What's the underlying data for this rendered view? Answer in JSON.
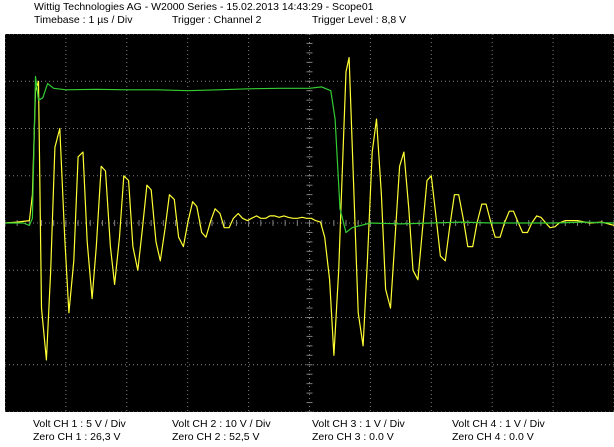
{
  "header": {
    "line1": "Wittig Technologies AG - W2000 Series  -  15.02.2013 14:43:29 - Scope01",
    "timebase": "Timebase : 1 µs / Div",
    "trigger": "Trigger : Channel 2",
    "trigger_level": "Trigger Level : 8,8 V"
  },
  "footer": {
    "volt": [
      "Volt CH 1 : 5 V / Div",
      "Volt CH 2 : 10 V / Div",
      "Volt CH 3 : 1 V / Div",
      "Volt CH 4 : 1 V / Div"
    ],
    "zero": [
      "Zero CH 1 : 26,3 V",
      "Zero CH 2 : 52,5 V",
      "Zero CH 3 : 0.0 V",
      "Zero CH 4 : 0.0 V"
    ]
  },
  "colors": {
    "background": "#000000",
    "grid": "#808080",
    "ch1": "#ffff33",
    "ch2": "#33cc33"
  },
  "chart_data": {
    "type": "line",
    "title": "",
    "xlabel": "",
    "ylabel": "",
    "x_unit": "µs",
    "y_unit": "div",
    "xlim": [
      0,
      10
    ],
    "ylim": [
      -4,
      4
    ],
    "grid": true,
    "series": [
      {
        "name": "CH 1",
        "color": "#ffff33",
        "x": [
          0,
          0.2,
          0.4,
          0.45,
          0.5,
          0.55,
          0.6,
          0.68,
          0.75,
          0.82,
          0.9,
          0.98,
          1.05,
          1.13,
          1.2,
          1.28,
          1.35,
          1.43,
          1.5,
          1.58,
          1.65,
          1.73,
          1.8,
          1.88,
          1.95,
          2.03,
          2.1,
          2.18,
          2.25,
          2.33,
          2.4,
          2.48,
          2.55,
          2.63,
          2.7,
          2.78,
          2.85,
          2.93,
          3.0,
          3.08,
          3.15,
          3.23,
          3.3,
          3.38,
          3.45,
          3.53,
          3.6,
          3.68,
          3.75,
          3.83,
          3.9,
          3.98,
          4.05,
          4.13,
          4.2,
          4.28,
          4.35,
          4.43,
          4.5,
          4.58,
          4.65,
          4.73,
          4.8,
          4.88,
          4.95,
          5.03,
          5.1,
          5.18,
          5.25,
          5.33,
          5.4,
          5.48,
          5.55,
          5.6,
          5.65,
          5.72,
          5.8,
          5.88,
          5.95,
          6.03,
          6.1,
          6.18,
          6.25,
          6.33,
          6.4,
          6.48,
          6.55,
          6.63,
          6.7,
          6.78,
          6.85,
          6.93,
          7.0,
          7.08,
          7.15,
          7.23,
          7.3,
          7.38,
          7.45,
          7.53,
          7.6,
          7.68,
          7.75,
          7.83,
          7.9,
          7.98,
          8.05,
          8.13,
          8.2,
          8.28,
          8.35,
          8.43,
          8.5,
          8.58,
          8.65,
          8.73,
          8.8,
          8.88,
          8.95,
          9.03,
          9.1,
          9.2,
          9.4,
          9.6,
          9.8,
          10
        ],
        "values": [
          0,
          0.02,
          0.05,
          0.6,
          2.8,
          3.0,
          -1.8,
          -2.9,
          -1.0,
          1.6,
          2.0,
          -0.3,
          -1.9,
          -0.8,
          1.4,
          1.5,
          -0.4,
          -1.6,
          -0.5,
          1.2,
          1.1,
          -0.5,
          -1.3,
          -0.3,
          1.0,
          0.9,
          -0.5,
          -1.0,
          -0.2,
          0.8,
          0.7,
          -0.4,
          -0.8,
          -0.1,
          0.6,
          0.5,
          -0.3,
          -0.5,
          0.0,
          0.45,
          0.35,
          -0.2,
          -0.3,
          0.05,
          0.3,
          0.2,
          -0.1,
          -0.1,
          0.1,
          0.2,
          0.1,
          0.05,
          0.1,
          0.15,
          0.1,
          0.1,
          0.15,
          0.15,
          0.12,
          0.15,
          0.12,
          0.1,
          0.1,
          0.12,
          0.1,
          0.1,
          0.05,
          0.02,
          -0.3,
          -1.2,
          -2.8,
          -1.0,
          1.5,
          3.2,
          3.5,
          1.0,
          -1.9,
          -2.6,
          -0.8,
          1.5,
          2.2,
          0.6,
          -1.4,
          -1.8,
          -0.4,
          1.2,
          1.5,
          0.3,
          -1.0,
          -1.2,
          -0.2,
          0.9,
          1.0,
          0.1,
          -0.7,
          -0.8,
          -0.1,
          0.6,
          0.6,
          0.05,
          -0.5,
          -0.5,
          0.0,
          0.4,
          0.4,
          0.0,
          -0.3,
          -0.3,
          0.0,
          0.25,
          0.25,
          0.0,
          -0.2,
          -0.2,
          0.0,
          0.15,
          0.12,
          0.0,
          -0.1,
          -0.08,
          0.0,
          0.05,
          0.05,
          0.0,
          0.02,
          -0.05
        ]
      },
      {
        "name": "CH 2",
        "color": "#33cc33",
        "x": [
          0,
          0.3,
          0.4,
          0.45,
          0.5,
          0.55,
          0.62,
          0.7,
          0.8,
          1.0,
          1.5,
          2.0,
          2.5,
          3.0,
          3.5,
          4.0,
          4.5,
          5.0,
          5.2,
          5.35,
          5.42,
          5.5,
          5.6,
          5.7,
          6.0,
          6.5,
          7.0,
          7.5,
          8.0,
          8.5,
          9.0,
          9.5,
          10
        ],
        "values": [
          0,
          0.0,
          -0.05,
          0.1,
          3.1,
          2.6,
          2.65,
          2.95,
          2.85,
          2.82,
          2.83,
          2.82,
          2.82,
          2.8,
          2.82,
          2.84,
          2.85,
          2.85,
          2.88,
          2.8,
          2.2,
          0.3,
          -0.2,
          -0.1,
          0.0,
          -0.02,
          0.0,
          0.02,
          0.0,
          0.0,
          0.0,
          0.02,
          0.0
        ]
      }
    ]
  }
}
